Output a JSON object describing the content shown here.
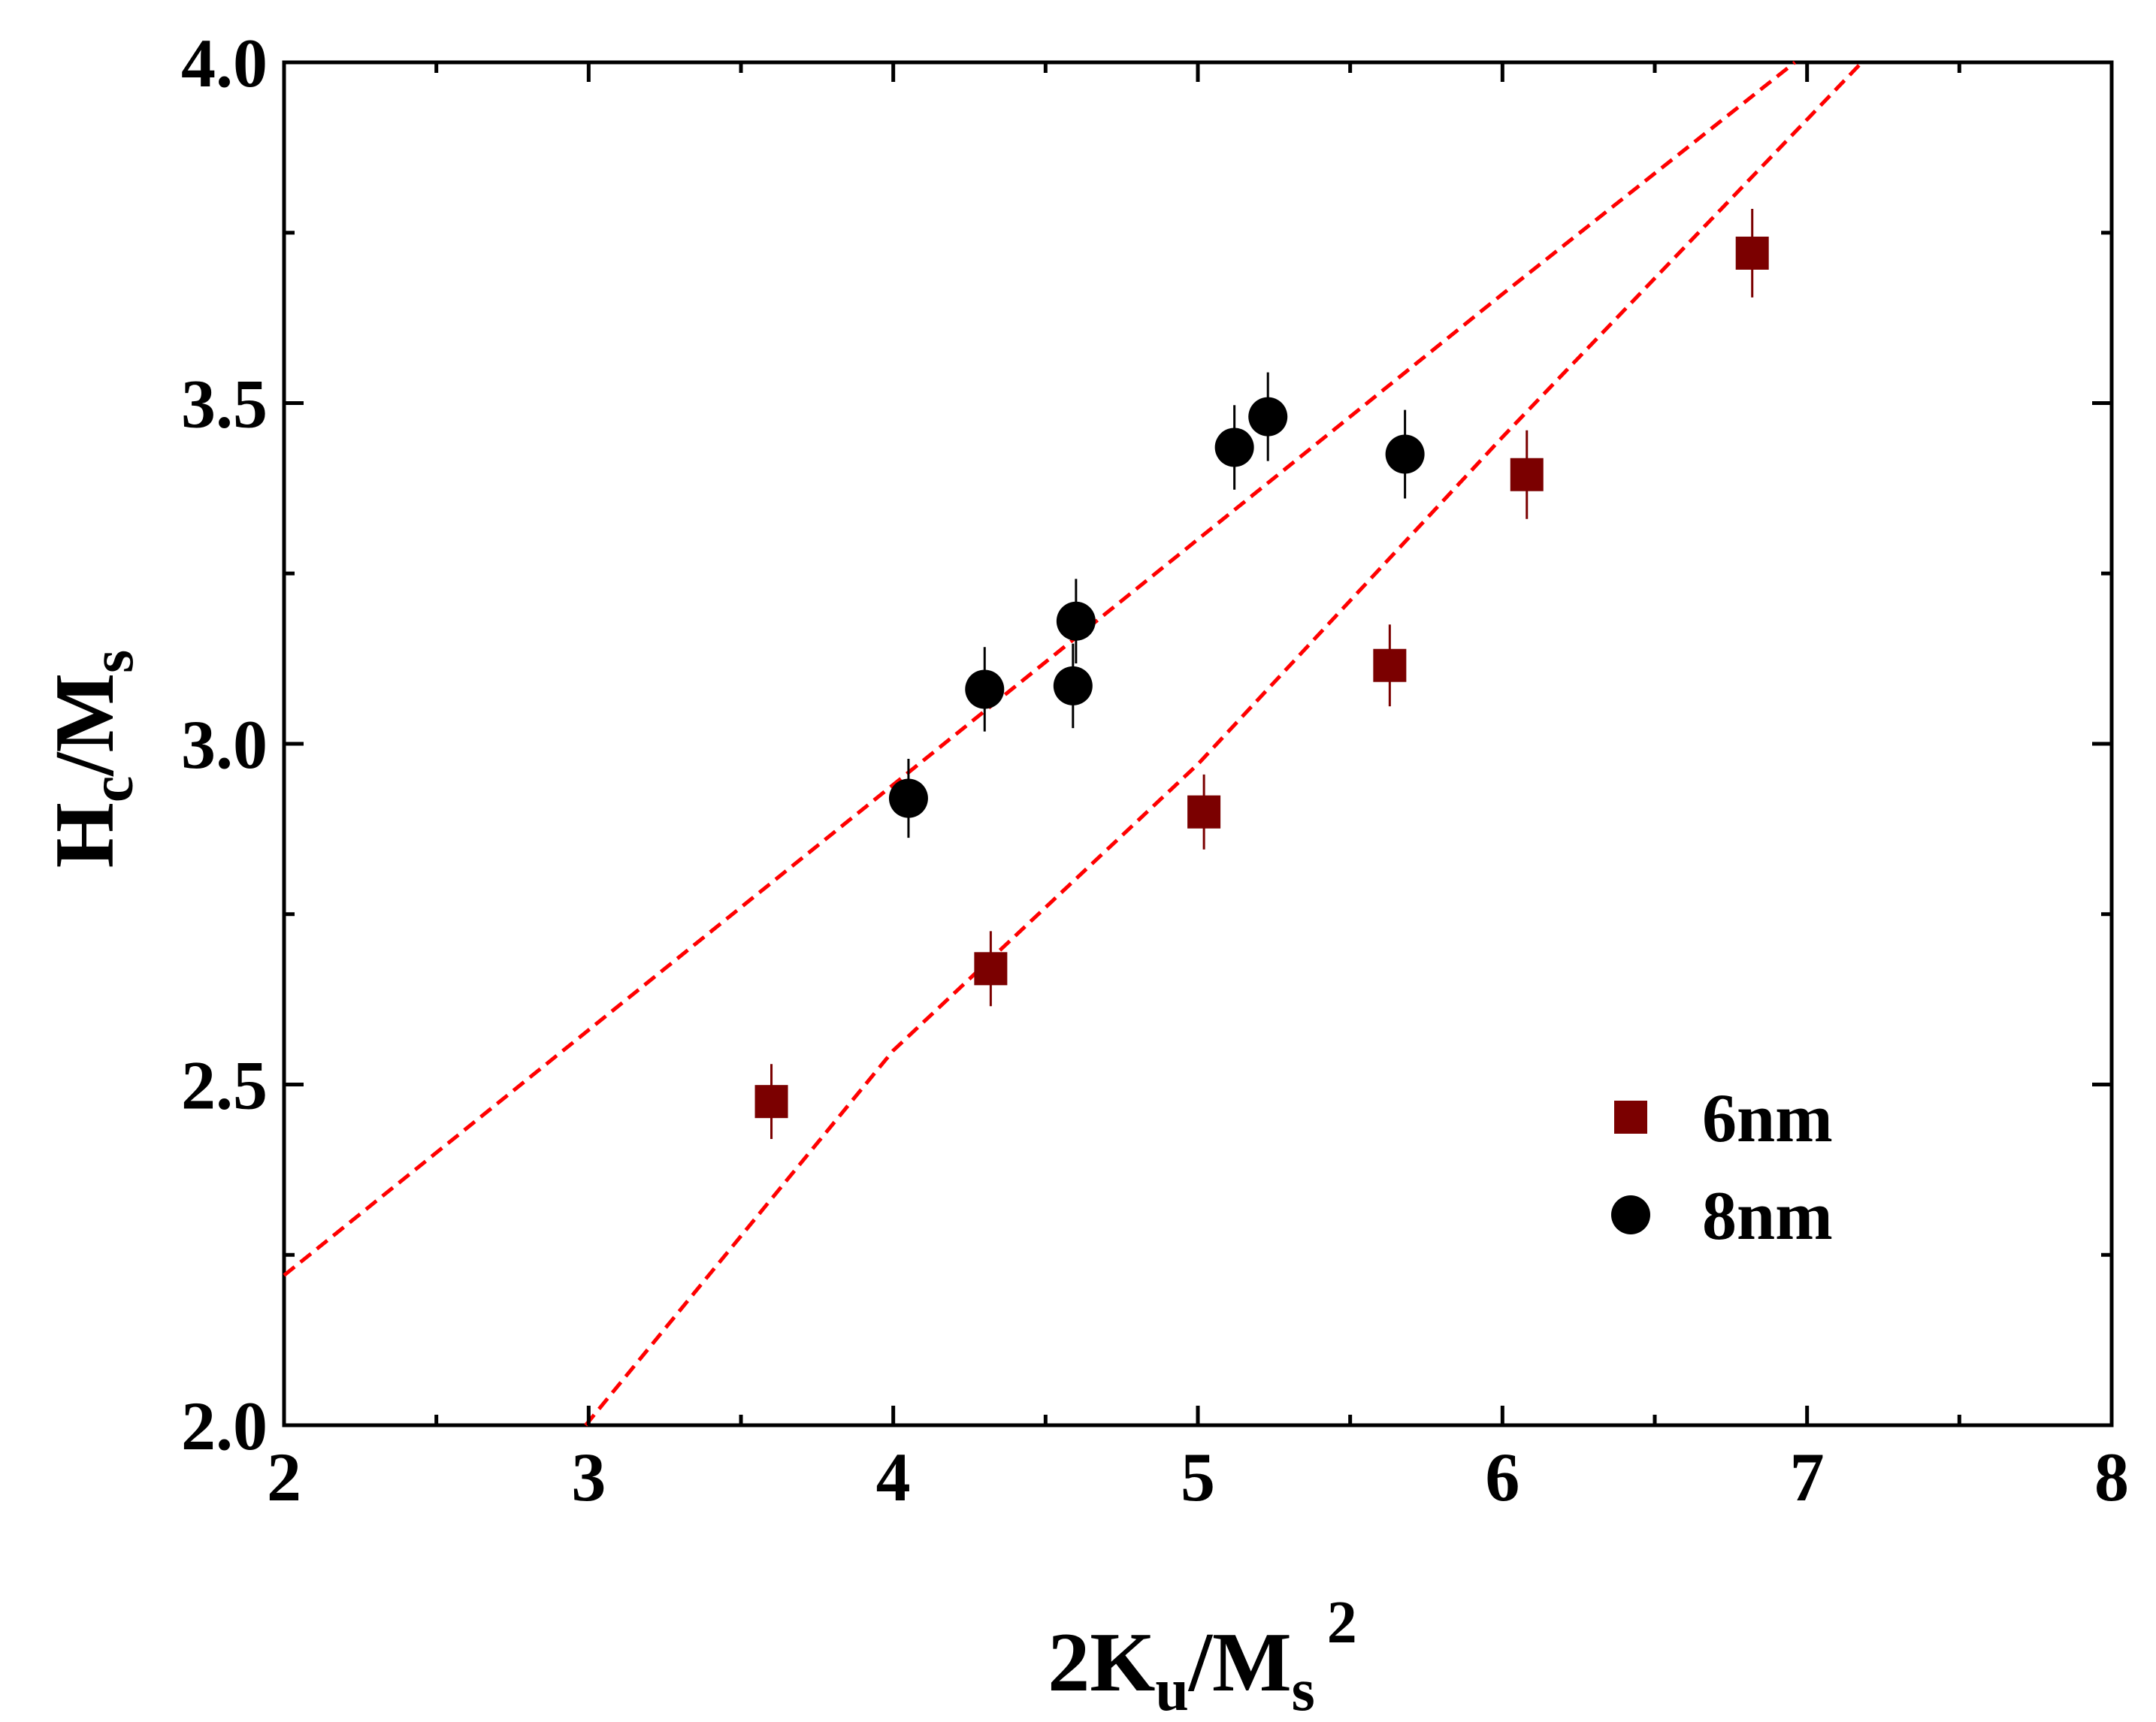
{
  "chart_data": {
    "type": "scatter",
    "title": "",
    "xlabel": {
      "base": "2K",
      "sub1": "u",
      "mid": "/M",
      "sub2": "s",
      "sup": "2"
    },
    "ylabel": {
      "base": "H",
      "sub1": "c",
      "mid": "/M",
      "sub2": "s"
    },
    "xlim": [
      2,
      8
    ],
    "ylim": [
      2.0,
      4.0
    ],
    "x_ticks": [
      2,
      3,
      4,
      5,
      6,
      7,
      8
    ],
    "x_tick_labels": [
      "2",
      "3",
      "4",
      "5",
      "6",
      "7",
      "8"
    ],
    "y_ticks": [
      2.0,
      2.5,
      3.0,
      3.5,
      4.0
    ],
    "y_tick_labels": [
      "2.0",
      "2.5",
      "3.0",
      "3.5",
      "4.0"
    ],
    "grid": false,
    "legend_position": "bottom-right",
    "series": [
      {
        "name": "6nm",
        "marker": "square",
        "color": "#7b0000",
        "points": [
          {
            "x": 3.6,
            "y": 2.475,
            "err": 0.055
          },
          {
            "x": 4.32,
            "y": 2.67,
            "err": 0.055
          },
          {
            "x": 5.02,
            "y": 2.9,
            "err": 0.055
          },
          {
            "x": 5.63,
            "y": 3.115,
            "err": 0.06
          },
          {
            "x": 6.08,
            "y": 3.395,
            "err": 0.065
          },
          {
            "x": 6.82,
            "y": 3.72,
            "err": 0.065
          }
        ]
      },
      {
        "name": "8nm",
        "marker": "circle",
        "color": "#000000",
        "points": [
          {
            "x": 4.05,
            "y": 2.92,
            "err": 0.058
          },
          {
            "x": 4.3,
            "y": 3.08,
            "err": 0.062
          },
          {
            "x": 4.59,
            "y": 3.085,
            "err": 0.062
          },
          {
            "x": 4.6,
            "y": 3.18,
            "err": 0.062
          },
          {
            "x": 5.12,
            "y": 3.435,
            "err": 0.062
          },
          {
            "x": 5.23,
            "y": 3.48,
            "err": 0.065
          },
          {
            "x": 5.68,
            "y": 3.425,
            "err": 0.065
          }
        ]
      }
    ],
    "fit_lines": [
      {
        "series": "6nm",
        "style": "dashed",
        "color": "#ff0000",
        "points": [
          [
            2.99,
            2.0
          ],
          [
            4.0,
            2.55
          ],
          [
            5.0,
            2.97
          ],
          [
            6.0,
            3.45
          ],
          [
            7.18,
            4.0
          ]
        ]
      },
      {
        "series": "8nm",
        "style": "dashed",
        "color": "#ff0000",
        "points": [
          [
            2.0,
            2.22
          ],
          [
            3.0,
            2.58
          ],
          [
            4.0,
            2.94
          ],
          [
            5.0,
            3.3
          ],
          [
            6.0,
            3.66
          ],
          [
            6.96,
            4.0
          ]
        ]
      }
    ]
  }
}
